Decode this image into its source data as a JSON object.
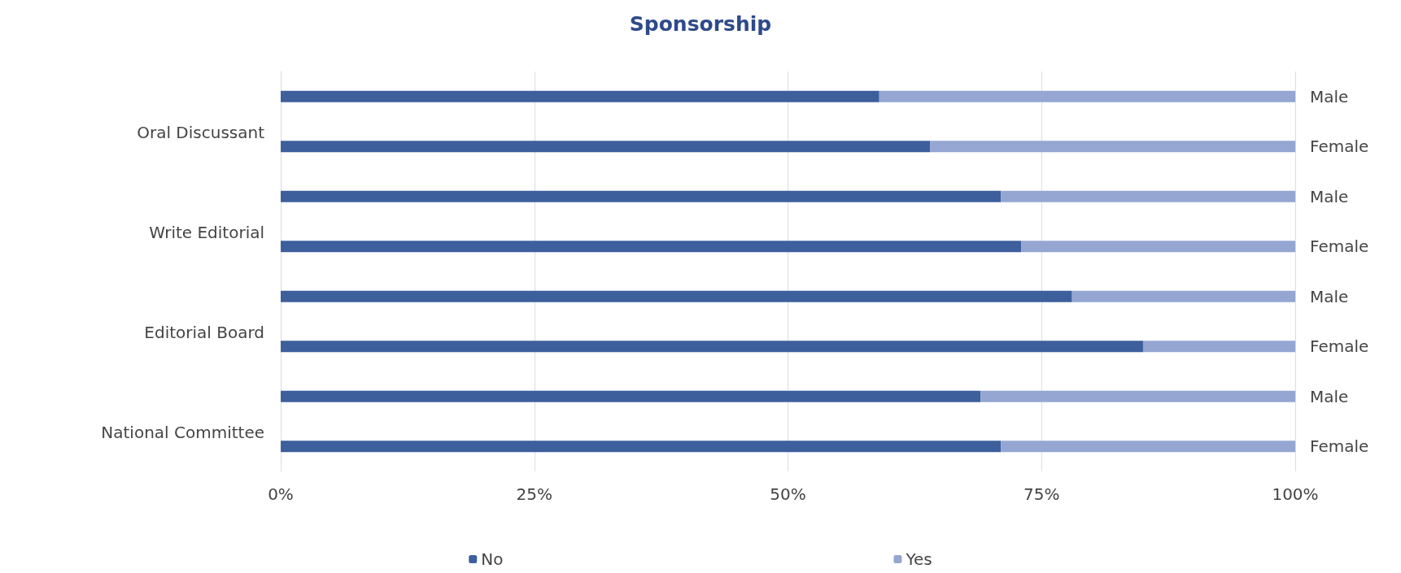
{
  "chart_data": {
    "type": "bar",
    "orientation": "horizontal",
    "stacked": true,
    "title": "Sponsorship",
    "categories": [
      "Male",
      "Female",
      "Male",
      "Female",
      "Male",
      "Female",
      "Male",
      "Female"
    ],
    "series": [
      {
        "name": "No",
        "color": "#3d5f9c",
        "values": [
          59,
          64,
          71,
          73,
          78,
          85,
          69,
          71
        ]
      },
      {
        "name": "Yes",
        "color": "#94a6d1",
        "values": [
          41,
          36,
          29,
          27,
          22,
          15,
          31,
          29
        ]
      }
    ],
    "annotations": [
      "Oral Discussant",
      "Write Editorial",
      "Editorial Board",
      "National Committee"
    ],
    "xlim": [
      0,
      100
    ],
    "xticks": [
      {
        "value": 0,
        "label": "0%"
      },
      {
        "value": 25,
        "label": "25%"
      },
      {
        "value": 50,
        "label": "50%"
      },
      {
        "value": 75,
        "label": "75%"
      },
      {
        "value": 100,
        "label": "100%"
      }
    ],
    "grid": "x",
    "legend": "bottom"
  }
}
